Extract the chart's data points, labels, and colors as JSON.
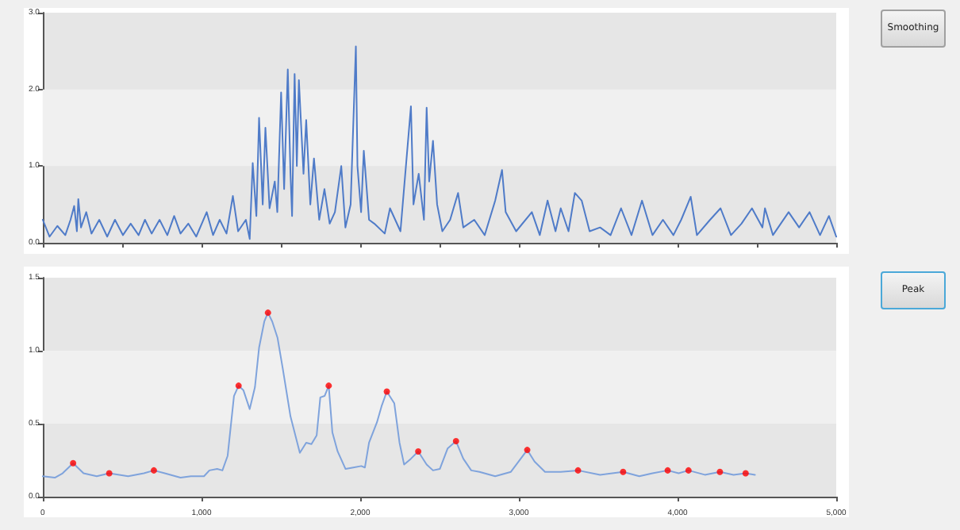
{
  "chart_data": [
    {
      "type": "line",
      "xlim": [
        0,
        5000
      ],
      "ylim": [
        0,
        3
      ],
      "tick_labels": "y",
      "marker": "none",
      "line_style": "solid",
      "xticks": [
        {
          "value": 0,
          "label": null
        },
        {
          "value": 500,
          "label": null
        },
        {
          "value": 1000,
          "label": null
        },
        {
          "value": 1500,
          "label": null
        },
        {
          "value": 2000,
          "label": null
        },
        {
          "value": 2500,
          "label": null
        },
        {
          "value": 3000,
          "label": null
        },
        {
          "value": 3500,
          "label": null
        },
        {
          "value": 4000,
          "label": null
        },
        {
          "value": 4500,
          "label": null
        },
        {
          "value": 5000,
          "label": null
        }
      ],
      "yticks": [
        {
          "value": 0,
          "label": "0.0"
        },
        {
          "value": 1,
          "label": "1.0"
        },
        {
          "value": 2,
          "label": "2.0"
        },
        {
          "value": 3,
          "label": "3.0"
        }
      ],
      "bands": [
        {
          "axis": "y",
          "from": 1,
          "to": 2,
          "color": "#f0f0f0"
        }
      ],
      "annotations": [
        "Smoothing"
      ],
      "series": [
        {
          "color": "#4f7bc8",
          "x": [
            0,
            43,
            92,
            142,
            175,
            198,
            215,
            224,
            241,
            274,
            307,
            356,
            406,
            455,
            505,
            554,
            604,
            644,
            686,
            736,
            785,
            828,
            868,
            917,
            967,
            1033,
            1073,
            1115,
            1158,
            1198,
            1231,
            1280,
            1304,
            1323,
            1346,
            1363,
            1386,
            1403,
            1429,
            1462,
            1478,
            1502,
            1521,
            1544,
            1561,
            1571,
            1587,
            1601,
            1614,
            1643,
            1660,
            1686,
            1709,
            1742,
            1775,
            1808,
            1841,
            1881,
            1907,
            1940,
            1973,
            1983,
            2006,
            2023,
            2056,
            2089,
            2155,
            2188,
            2254,
            2320,
            2336,
            2369,
            2402,
            2419,
            2435,
            2459,
            2485,
            2518,
            2567,
            2617,
            2650,
            2719,
            2785,
            2851,
            2894,
            2917,
            2983,
            3082,
            3132,
            3181,
            3231,
            3264,
            3313,
            3353,
            3396,
            3446,
            3512,
            3578,
            3644,
            3710,
            3776,
            3842,
            3908,
            3974,
            4023,
            4083,
            4122,
            4205,
            4271,
            4337,
            4403,
            4469,
            4535,
            4551,
            4601,
            4700,
            4766,
            4832,
            4898,
            4954,
            5000
          ],
          "values": [
            0.3,
            0.08,
            0.22,
            0.1,
            0.3,
            0.48,
            0.15,
            0.57,
            0.2,
            0.4,
            0.12,
            0.3,
            0.08,
            0.3,
            0.1,
            0.25,
            0.1,
            0.3,
            0.12,
            0.3,
            0.1,
            0.35,
            0.12,
            0.25,
            0.08,
            0.4,
            0.1,
            0.3,
            0.12,
            0.61,
            0.15,
            0.3,
            0.05,
            1.04,
            0.35,
            1.63,
            0.5,
            1.5,
            0.45,
            0.8,
            0.4,
            1.96,
            0.7,
            2.26,
            0.9,
            0.35,
            2.2,
            1.0,
            2.12,
            0.9,
            1.6,
            0.5,
            1.1,
            0.3,
            0.7,
            0.25,
            0.4,
            1.0,
            0.2,
            0.5,
            2.56,
            1.0,
            0.4,
            1.2,
            0.3,
            0.25,
            0.12,
            0.45,
            0.15,
            1.78,
            0.5,
            0.9,
            0.3,
            1.76,
            0.8,
            1.33,
            0.5,
            0.15,
            0.3,
            0.65,
            0.2,
            0.3,
            0.1,
            0.55,
            0.95,
            0.4,
            0.15,
            0.4,
            0.1,
            0.55,
            0.15,
            0.45,
            0.15,
            0.65,
            0.55,
            0.15,
            0.2,
            0.1,
            0.45,
            0.1,
            0.55,
            0.1,
            0.3,
            0.1,
            0.3,
            0.6,
            0.1,
            0.3,
            0.45,
            0.1,
            0.25,
            0.45,
            0.2,
            0.45,
            0.1,
            0.4,
            0.2,
            0.4,
            0.1,
            0.35,
            0.08
          ]
        }
      ]
    },
    {
      "type": "line",
      "xlim": [
        0,
        5000
      ],
      "ylim": [
        0,
        1.5
      ],
      "marker": "none",
      "line_style": "solid",
      "xticks": [
        0,
        {
          "value": 1000,
          "label": "1,000"
        },
        {
          "value": 2000,
          "label": "2,000"
        },
        {
          "value": 3000,
          "label": "3,000"
        },
        {
          "value": 4000,
          "label": "4,000"
        },
        {
          "value": 5000,
          "label": "5,000"
        }
      ],
      "yticks": [
        {
          "value": 0,
          "label": "0.0"
        },
        {
          "value": 0.5,
          "label": "0.5"
        },
        {
          "value": 1,
          "label": "1.0"
        },
        {
          "value": 1.5,
          "label": "1.5"
        }
      ],
      "bands": [
        {
          "axis": "y",
          "from": 0.5,
          "to": 1,
          "color": "#f0f0f0"
        }
      ],
      "annotations": [
        "Peak"
      ],
      "series": [
        {
          "color": "#7fa3dc",
          "x": [
            0,
            76,
            125,
            191,
            257,
            340,
            419,
            538,
            637,
            700,
            769,
            868,
            934,
            1016,
            1050,
            1099,
            1132,
            1165,
            1205,
            1234,
            1264,
            1304,
            1337,
            1363,
            1396,
            1419,
            1446,
            1479,
            1512,
            1561,
            1620,
            1660,
            1693,
            1726,
            1749,
            1776,
            1802,
            1825,
            1858,
            1908,
            1957,
            2007,
            2030,
            2056,
            2106,
            2135,
            2168,
            2215,
            2248,
            2277,
            2320,
            2366,
            2419,
            2459,
            2502,
            2551,
            2604,
            2650,
            2700,
            2752,
            2851,
            2950,
            3053,
            3099,
            3165,
            3264,
            3373,
            3512,
            3657,
            3759,
            3842,
            3938,
            4007,
            4069,
            4172,
            4267,
            4353,
            4429,
            4488
          ],
          "values": [
            0.14,
            0.13,
            0.16,
            0.23,
            0.16,
            0.14,
            0.16,
            0.14,
            0.16,
            0.18,
            0.16,
            0.13,
            0.14,
            0.14,
            0.18,
            0.19,
            0.18,
            0.28,
            0.69,
            0.76,
            0.73,
            0.6,
            0.75,
            1.02,
            1.2,
            1.26,
            1.2,
            1.09,
            0.88,
            0.55,
            0.3,
            0.37,
            0.36,
            0.42,
            0.68,
            0.69,
            0.76,
            0.44,
            0.31,
            0.19,
            0.2,
            0.21,
            0.2,
            0.37,
            0.51,
            0.62,
            0.72,
            0.64,
            0.37,
            0.22,
            0.26,
            0.31,
            0.22,
            0.18,
            0.19,
            0.33,
            0.38,
            0.26,
            0.18,
            0.17,
            0.14,
            0.17,
            0.32,
            0.24,
            0.17,
            0.17,
            0.18,
            0.15,
            0.17,
            0.14,
            0.16,
            0.18,
            0.16,
            0.18,
            0.15,
            0.17,
            0.15,
            0.16,
            0.15
          ]
        },
        {
          "type": "scatter",
          "marker": "circle",
          "color": "#ff0000",
          "x": [
            191,
            419,
            700,
            1234,
            1419,
            1802,
            2168,
            2366,
            2604,
            3053,
            3373,
            3657,
            3938,
            4069,
            4267,
            4429
          ],
          "values": [
            0.23,
            0.16,
            0.18,
            0.76,
            1.26,
            0.76,
            0.72,
            0.31,
            0.38,
            0.32,
            0.18,
            0.17,
            0.18,
            0.18,
            0.17,
            0.16
          ]
        }
      ]
    }
  ]
}
